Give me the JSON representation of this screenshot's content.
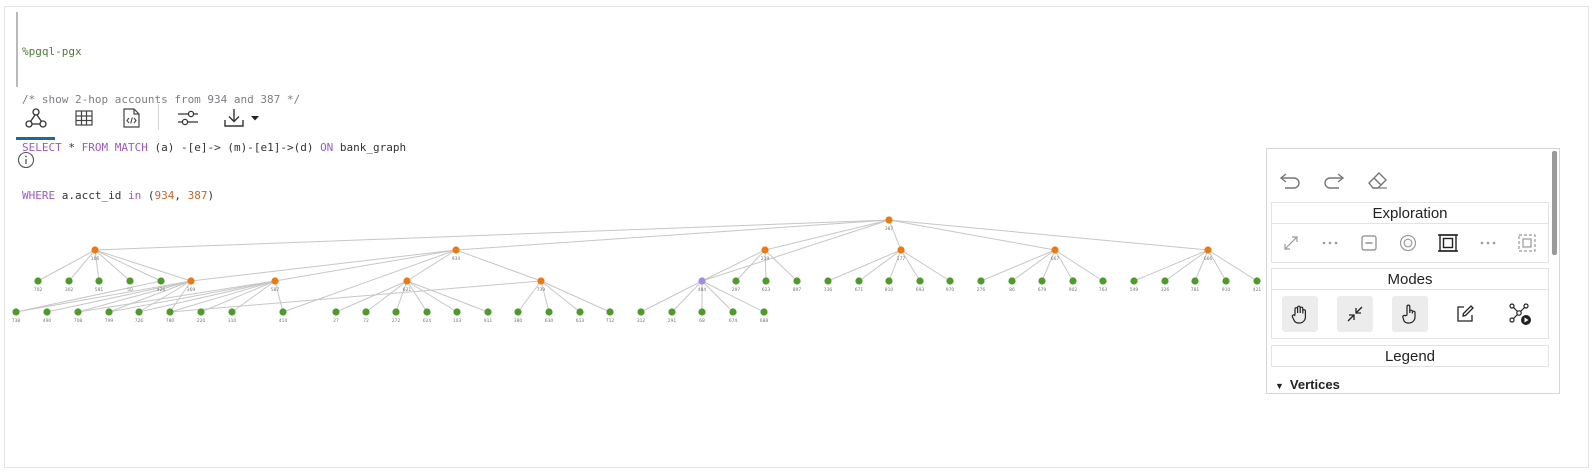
{
  "code": {
    "line1": "%pgql-pgx",
    "line2": "/* show 2-hop accounts from 934 and 387 */",
    "line3": {
      "kw1": "SELECT",
      "t1": " * ",
      "kw2": "FROM",
      "t2": " ",
      "kw3": "MATCH",
      "t3": " (a) -[e]-> (m)-[e1]->(d) ",
      "kw4": "ON",
      "t4": " bank_graph"
    },
    "line4": {
      "kw1": "WHERE",
      "t1": " a.acct_id ",
      "kw2": "in",
      "t2": " (",
      "n1": "934",
      "t3": ", ",
      "n2": "387",
      "t4": ")"
    }
  },
  "toolbar": {
    "tabs": [
      {
        "name": "graph-view",
        "icon": "graph-icon",
        "active": true
      },
      {
        "name": "table-view",
        "icon": "table-icon",
        "active": false
      },
      {
        "name": "json-view",
        "icon": "code-file-icon",
        "active": false
      }
    ],
    "settings_icon": "sliders-icon",
    "download_icon": "download-icon"
  },
  "panel": {
    "exploration_title": "Exploration",
    "modes_title": "Modes",
    "legend_title": "Legend",
    "vertices_label": "Vertices"
  },
  "colors": {
    "root": "#ec7a14",
    "hub": "#ec7a14",
    "leaf": "#4f9a2a",
    "special": "#a78be0",
    "edge": "#c7c7c7",
    "accent_tab": "#1f6b8e"
  },
  "graph": {
    "root": "387",
    "hubs": [
      "166",
      "934",
      "219",
      "177",
      "667",
      "666",
      "369",
      "587",
      "621",
      "739"
    ],
    "special": "484",
    "leaves_row1": [
      "702",
      "302",
      "581",
      "50",
      "426",
      "297",
      "623",
      "897",
      "136",
      "671",
      "810",
      "693",
      "970",
      "276",
      "86",
      "679",
      "902",
      "763",
      "549",
      "326",
      "781",
      "910",
      "421"
    ],
    "leaves_row2": [
      "738",
      "490",
      "708",
      "799",
      "726",
      "780",
      "220",
      "310",
      "414",
      "27",
      "72",
      "272",
      "624",
      "103",
      "911",
      "380",
      "630",
      "613",
      "712",
      "312",
      "291",
      "68",
      "674",
      "688"
    ]
  }
}
